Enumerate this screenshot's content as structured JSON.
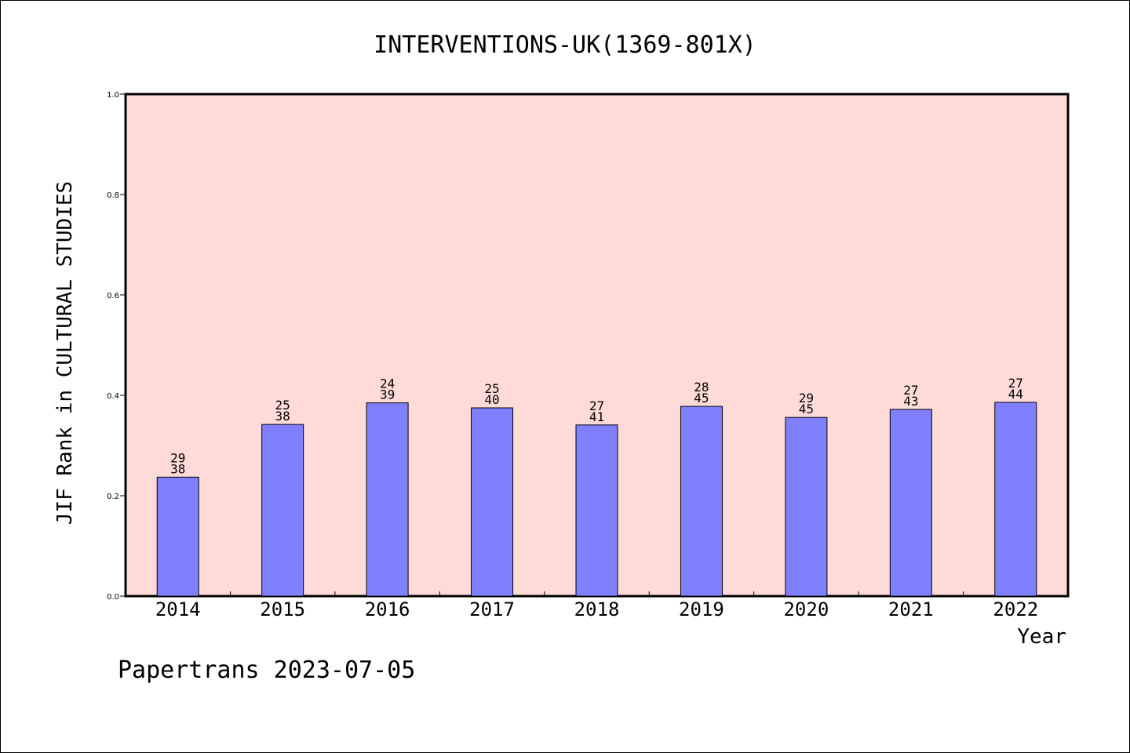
{
  "chart_data": {
    "type": "bar",
    "title": "INTERVENTIONS-UK(1369-801X)",
    "xlabel": "Year",
    "ylabel": "JIF Rank in CULTURAL STUDIES",
    "ylim": [
      0.0,
      1.0
    ],
    "yticks": [
      "0.0",
      "0.2",
      "0.4",
      "0.6",
      "0.8",
      "1.0"
    ],
    "categories": [
      "2014",
      "2015",
      "2016",
      "2017",
      "2018",
      "2019",
      "2020",
      "2021",
      "2022"
    ],
    "values": [
      0.237,
      0.342,
      0.385,
      0.375,
      0.341,
      0.378,
      0.356,
      0.372,
      0.386
    ],
    "rank": [
      "29",
      "25",
      "24",
      "25",
      "27",
      "28",
      "29",
      "27",
      "27"
    ],
    "total": [
      "38",
      "38",
      "39",
      "40",
      "41",
      "45",
      "45",
      "43",
      "44"
    ],
    "grid": false,
    "colors": {
      "bar": "#8080ff",
      "plot_bg": "#ffdbd8",
      "axis": "#000000"
    }
  },
  "footer": {
    "source": "Papertrans 2023-07-05"
  }
}
